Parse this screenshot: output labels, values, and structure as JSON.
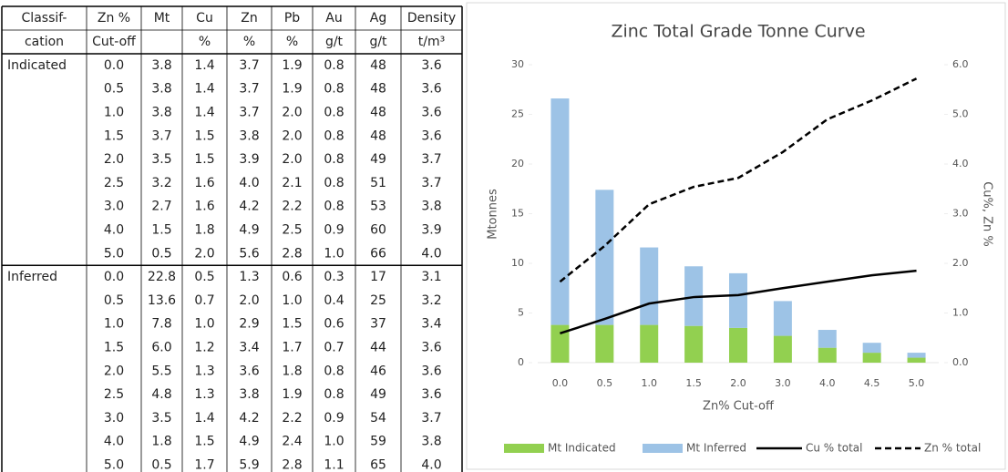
{
  "table": {
    "header": [
      [
        "Classif-",
        "cation"
      ],
      [
        "Zn %",
        "Cut-off"
      ],
      [
        "Mt"
      ],
      [
        "Cu",
        "%"
      ],
      [
        "Zn",
        "%"
      ],
      [
        "Pb",
        "%"
      ],
      [
        "Au",
        "g/t"
      ],
      [
        "Ag",
        "g/t"
      ],
      [
        "Density",
        "t/m³"
      ]
    ],
    "groups": [
      {
        "name": "Indicated",
        "rows": [
          [
            "0.0",
            "3.8",
            "1.4",
            "3.7",
            "1.9",
            "0.8",
            "48",
            "3.6"
          ],
          [
            "0.5",
            "3.8",
            "1.4",
            "3.7",
            "1.9",
            "0.8",
            "48",
            "3.6"
          ],
          [
            "1.0",
            "3.8",
            "1.4",
            "3.7",
            "2.0",
            "0.8",
            "48",
            "3.6"
          ],
          [
            "1.5",
            "3.7",
            "1.5",
            "3.8",
            "2.0",
            "0.8",
            "48",
            "3.6"
          ],
          [
            "2.0",
            "3.5",
            "1.5",
            "3.9",
            "2.0",
            "0.8",
            "49",
            "3.7"
          ],
          [
            "2.5",
            "3.2",
            "1.6",
            "4.0",
            "2.1",
            "0.8",
            "51",
            "3.7"
          ],
          [
            "3.0",
            "2.7",
            "1.6",
            "4.2",
            "2.2",
            "0.8",
            "53",
            "3.8"
          ],
          [
            "4.0",
            "1.5",
            "1.8",
            "4.9",
            "2.5",
            "0.9",
            "60",
            "3.9"
          ],
          [
            "5.0",
            "0.5",
            "2.0",
            "5.6",
            "2.8",
            "1.0",
            "66",
            "4.0"
          ]
        ]
      },
      {
        "name": "Inferred",
        "rows": [
          [
            "0.0",
            "22.8",
            "0.5",
            "1.3",
            "0.6",
            "0.3",
            "17",
            "3.1"
          ],
          [
            "0.5",
            "13.6",
            "0.7",
            "2.0",
            "1.0",
            "0.4",
            "25",
            "3.2"
          ],
          [
            "1.0",
            "7.8",
            "1.0",
            "2.9",
            "1.5",
            "0.6",
            "37",
            "3.4"
          ],
          [
            "1.5",
            "6.0",
            "1.2",
            "3.4",
            "1.7",
            "0.7",
            "44",
            "3.6"
          ],
          [
            "2.0",
            "5.5",
            "1.3",
            "3.6",
            "1.8",
            "0.8",
            "46",
            "3.6"
          ],
          [
            "2.5",
            "4.8",
            "1.3",
            "3.8",
            "1.9",
            "0.8",
            "49",
            "3.6"
          ],
          [
            "3.0",
            "3.5",
            "1.4",
            "4.2",
            "2.2",
            "0.9",
            "54",
            "3.7"
          ],
          [
            "4.0",
            "1.8",
            "1.5",
            "4.9",
            "2.4",
            "1.0",
            "59",
            "3.8"
          ],
          [
            "5.0",
            "0.5",
            "1.7",
            "5.9",
            "2.8",
            "1.1",
            "65",
            "4.0"
          ]
        ]
      }
    ]
  },
  "chart_data": {
    "type": "bar",
    "stacked": true,
    "title": "Zinc Total Grade Tonne Curve",
    "xlabel": "Zn% Cut-off",
    "ylabel": "Mtonnes",
    "y2label": "Cu%, Zn %",
    "categories": [
      "0.0",
      "0.5",
      "1.0",
      "1.5",
      "2.0",
      "3.0",
      "4.0",
      "4.5",
      "5.0"
    ],
    "ylim": [
      0,
      30
    ],
    "yticks": [
      0,
      5,
      10,
      15,
      20,
      25,
      30
    ],
    "y2lim": [
      0,
      6
    ],
    "y2ticks": [
      {
        "value": 0,
        "label": "0.0"
      },
      {
        "value": 1,
        "label": "1.0"
      },
      {
        "value": 2,
        "label": "2.0"
      },
      {
        "value": 3,
        "label": "3.0"
      },
      {
        "value": 4,
        "label": "4.0"
      },
      {
        "value": 5,
        "label": "5.0"
      },
      {
        "value": 6,
        "label": "6.0"
      }
    ],
    "grid": false,
    "legend": "bottom",
    "series": [
      {
        "name": "Mt Indicated",
        "type": "bar",
        "color": "#92d050",
        "values": [
          3.8,
          3.8,
          3.8,
          3.7,
          3.5,
          2.7,
          1.5,
          1.0,
          0.5
        ]
      },
      {
        "name": "Mt Inferred",
        "type": "bar",
        "color": "#9dc3e6",
        "values": [
          22.8,
          13.6,
          7.8,
          6.0,
          5.5,
          3.5,
          1.8,
          1.0,
          0.5
        ]
      },
      {
        "name": "Cu % total",
        "type": "line",
        "axis": "y2",
        "color": "#000000",
        "dashed": false,
        "values": [
          0.59,
          0.88,
          1.19,
          1.32,
          1.36,
          1.5,
          1.63,
          1.76,
          1.85
        ]
      },
      {
        "name": "Zn % total",
        "type": "line",
        "axis": "y2",
        "color": "#000000",
        "dashed": true,
        "values": [
          1.63,
          2.35,
          3.19,
          3.54,
          3.72,
          4.24,
          4.9,
          5.28,
          5.72
        ]
      }
    ]
  }
}
